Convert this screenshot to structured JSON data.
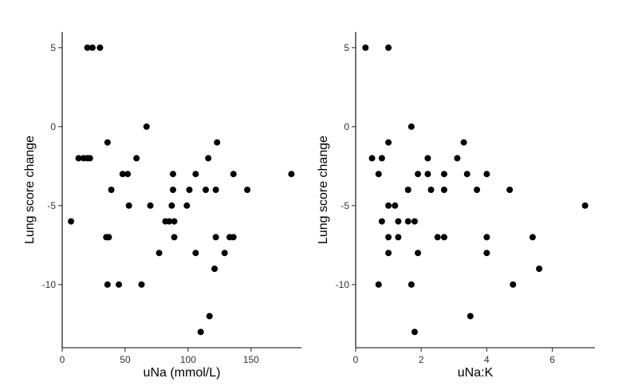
{
  "chart_data": [
    {
      "type": "scatter",
      "title": "",
      "xlabel": "uNa (mmol/L)",
      "ylabel": "Lung score change",
      "xlim": [
        0,
        190
      ],
      "ylim": [
        -14,
        6
      ],
      "xticks": [
        0,
        50,
        100,
        150
      ],
      "yticks": [
        5,
        0,
        -5,
        -10
      ],
      "grid": false,
      "legend": "none",
      "point_color": "#000000",
      "points": [
        {
          "x": 20,
          "y": 5
        },
        {
          "x": 24,
          "y": 5
        },
        {
          "x": 30,
          "y": 5
        },
        {
          "x": 67,
          "y": 0
        },
        {
          "x": 36,
          "y": -1
        },
        {
          "x": 123,
          "y": -1
        },
        {
          "x": 13,
          "y": -2
        },
        {
          "x": 17,
          "y": -2
        },
        {
          "x": 20,
          "y": -2
        },
        {
          "x": 22,
          "y": -2
        },
        {
          "x": 59,
          "y": -2
        },
        {
          "x": 116,
          "y": -2
        },
        {
          "x": 48,
          "y": -3
        },
        {
          "x": 52,
          "y": -3
        },
        {
          "x": 88,
          "y": -3
        },
        {
          "x": 106,
          "y": -3
        },
        {
          "x": 136,
          "y": -3
        },
        {
          "x": 182,
          "y": -3
        },
        {
          "x": 39,
          "y": -4
        },
        {
          "x": 88,
          "y": -4
        },
        {
          "x": 101,
          "y": -4
        },
        {
          "x": 114,
          "y": -4
        },
        {
          "x": 122,
          "y": -4
        },
        {
          "x": 147,
          "y": -4
        },
        {
          "x": 53,
          "y": -5
        },
        {
          "x": 70,
          "y": -5
        },
        {
          "x": 87,
          "y": -5
        },
        {
          "x": 99,
          "y": -5
        },
        {
          "x": 7,
          "y": -6
        },
        {
          "x": 82,
          "y": -6
        },
        {
          "x": 85,
          "y": -6
        },
        {
          "x": 89,
          "y": -6
        },
        {
          "x": 35,
          "y": -7
        },
        {
          "x": 37,
          "y": -7
        },
        {
          "x": 89,
          "y": -7
        },
        {
          "x": 122,
          "y": -7
        },
        {
          "x": 133,
          "y": -7
        },
        {
          "x": 136,
          "y": -7
        },
        {
          "x": 77,
          "y": -8
        },
        {
          "x": 106,
          "y": -8
        },
        {
          "x": 129,
          "y": -8
        },
        {
          "x": 121,
          "y": -9
        },
        {
          "x": 36,
          "y": -10
        },
        {
          "x": 45,
          "y": -10
        },
        {
          "x": 63,
          "y": -10
        },
        {
          "x": 117,
          "y": -12
        },
        {
          "x": 110,
          "y": -13
        }
      ]
    },
    {
      "type": "scatter",
      "title": "",
      "xlabel": "uNa:K",
      "ylabel": "Lung score change",
      "xlim": [
        0,
        7.3
      ],
      "ylim": [
        -14,
        6
      ],
      "xticks": [
        0,
        2,
        4,
        6
      ],
      "yticks": [
        5,
        0,
        -5,
        -10
      ],
      "grid": false,
      "legend": "none",
      "point_color": "#000000",
      "points": [
        {
          "x": 0.3,
          "y": 5
        },
        {
          "x": 1.0,
          "y": 5
        },
        {
          "x": 1.7,
          "y": 0
        },
        {
          "x": 1.0,
          "y": -1
        },
        {
          "x": 3.3,
          "y": -1
        },
        {
          "x": 0.5,
          "y": -2
        },
        {
          "x": 0.8,
          "y": -2
        },
        {
          "x": 2.2,
          "y": -2
        },
        {
          "x": 3.1,
          "y": -2
        },
        {
          "x": 0.7,
          "y": -3
        },
        {
          "x": 1.9,
          "y": -3
        },
        {
          "x": 2.2,
          "y": -3
        },
        {
          "x": 2.7,
          "y": -3
        },
        {
          "x": 3.4,
          "y": -3
        },
        {
          "x": 4.0,
          "y": -3
        },
        {
          "x": 1.6,
          "y": -4
        },
        {
          "x": 2.3,
          "y": -4
        },
        {
          "x": 2.7,
          "y": -4
        },
        {
          "x": 3.7,
          "y": -4
        },
        {
          "x": 4.7,
          "y": -4
        },
        {
          "x": 1.0,
          "y": -5
        },
        {
          "x": 1.2,
          "y": -5
        },
        {
          "x": 7.0,
          "y": -5
        },
        {
          "x": 0.8,
          "y": -6
        },
        {
          "x": 1.3,
          "y": -6
        },
        {
          "x": 1.6,
          "y": -6
        },
        {
          "x": 1.8,
          "y": -6
        },
        {
          "x": 1.0,
          "y": -7
        },
        {
          "x": 1.3,
          "y": -7
        },
        {
          "x": 2.5,
          "y": -7
        },
        {
          "x": 2.7,
          "y": -7
        },
        {
          "x": 4.0,
          "y": -7
        },
        {
          "x": 5.4,
          "y": -7
        },
        {
          "x": 1.0,
          "y": -8
        },
        {
          "x": 1.9,
          "y": -8
        },
        {
          "x": 4.0,
          "y": -8
        },
        {
          "x": 5.6,
          "y": -9
        },
        {
          "x": 0.7,
          "y": -10
        },
        {
          "x": 1.7,
          "y": -10
        },
        {
          "x": 4.8,
          "y": -10
        },
        {
          "x": 3.5,
          "y": -12
        },
        {
          "x": 1.8,
          "y": -13
        }
      ]
    }
  ]
}
